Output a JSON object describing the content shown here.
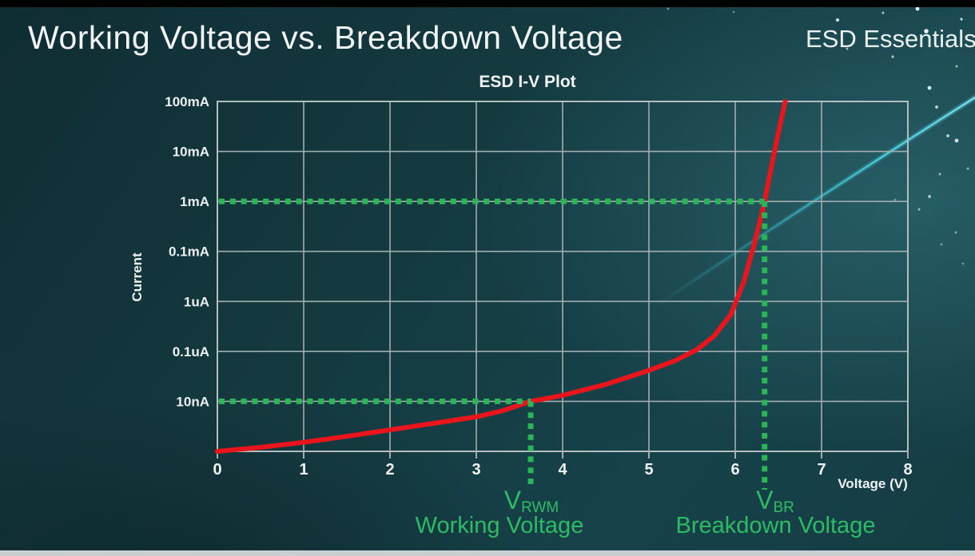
{
  "header": {
    "title": "Working Voltage vs. Breakdown Voltage",
    "brand": "ESD Essentials"
  },
  "chart_data": {
    "type": "line",
    "title": "ESD I-V Plot",
    "xlabel": "Voltage (V)",
    "ylabel": "Current",
    "grid": true,
    "xlim": [
      0,
      8
    ],
    "x_ticks": [
      0,
      1,
      2,
      3,
      4,
      5,
      6,
      7,
      8
    ],
    "y_tick_labels": [
      "100mA",
      "10mA",
      "1mA",
      "0.1mA",
      "1uA",
      "0.1uA",
      "10nA"
    ],
    "y_axis_note": "log-style current axis; 7 labeled gridlines from 100mA (top) down to 10nA, unlabeled baseline below 10nA",
    "series": [
      {
        "name": "ESD device I-V curve",
        "color": "#e8151c",
        "points_v_row": [
          [
            0,
            7.0
          ],
          [
            0.5,
            6.92
          ],
          [
            1,
            6.82
          ],
          [
            1.5,
            6.7
          ],
          [
            2,
            6.57
          ],
          [
            2.5,
            6.44
          ],
          [
            3,
            6.31
          ],
          [
            3.3,
            6.19
          ],
          [
            3.63,
            6.0
          ],
          [
            4,
            5.88
          ],
          [
            4.5,
            5.66
          ],
          [
            5,
            5.38
          ],
          [
            5.3,
            5.19
          ],
          [
            5.55,
            4.97
          ],
          [
            5.75,
            4.7
          ],
          [
            5.95,
            4.26
          ],
          [
            6.1,
            3.6
          ],
          [
            6.22,
            2.85
          ],
          [
            6.3,
            2.3
          ],
          [
            6.34,
            2.0
          ],
          [
            6.42,
            1.3
          ],
          [
            6.5,
            0.62
          ],
          [
            6.58,
            0.0
          ]
        ],
        "row_meaning": "row index from top gridline: 0=100mA, 1=10mA, 2=1mA, 3=0.1mA, 4=1uA, 5=0.1uA, 6=10nA, 7=baseline"
      }
    ],
    "annotations": {
      "color": "#2ab657",
      "text_color": "#2dbb63",
      "guide_lines": [
        {
          "current_label": "1mA",
          "current_row": 2,
          "voltage": 6.34
        },
        {
          "current_label": "10nA",
          "current_row": 6,
          "voltage": 3.63
        }
      ],
      "vrwm": {
        "symbol": "V",
        "subscript": "RWM",
        "caption": "Working Voltage",
        "voltage": 3.63,
        "current": "10nA"
      },
      "vbr": {
        "symbol": "V",
        "subscript": "BR",
        "caption": "Breakdown Voltage",
        "voltage": 6.34,
        "current": "1mA"
      }
    }
  }
}
